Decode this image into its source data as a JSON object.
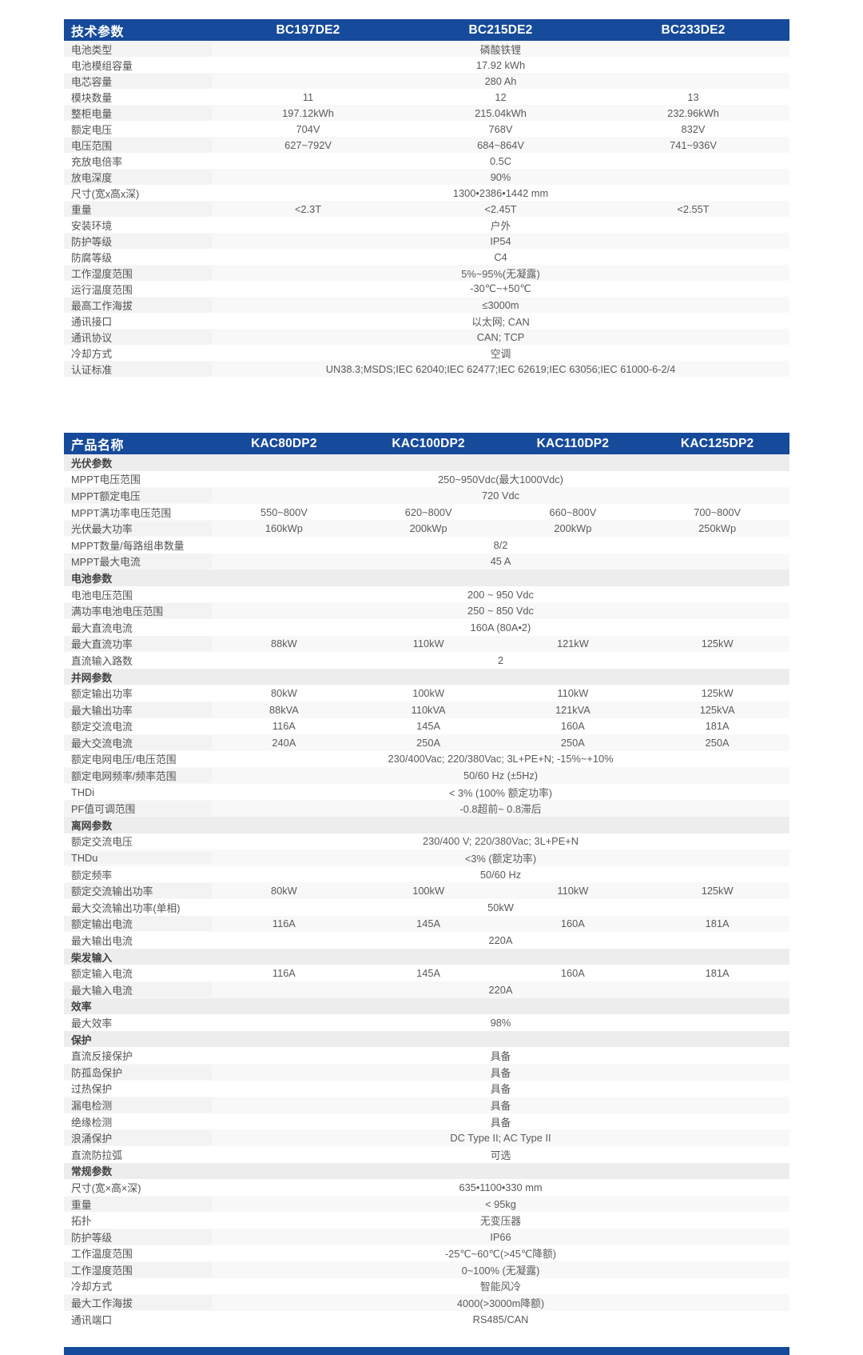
{
  "colors": {
    "header_blue": "#164a9b",
    "stripe_gray": "#f8f8f9",
    "section_gray": "#ededee",
    "body_text": "#5a5a5c"
  },
  "tables": [
    {
      "title": "技术参数",
      "columns": [
        "BC197DE2",
        "BC215DE2",
        "BC233DE2"
      ],
      "first_row_shaded": true,
      "rows": [
        {
          "label": "电池类型",
          "span": "磷酸铁锂"
        },
        {
          "label": "电池模组容量",
          "span": "17.92 kWh"
        },
        {
          "label": "电芯容量",
          "span": "280 Ah"
        },
        {
          "label": "模块数量",
          "values": [
            "11",
            "12",
            "13"
          ]
        },
        {
          "label": "整柜电量",
          "values": [
            "197.12kWh",
            "215.04kWh",
            "232.96kWh"
          ]
        },
        {
          "label": "额定电压",
          "values": [
            "704V",
            "768V",
            "832V"
          ]
        },
        {
          "label": "电压范围",
          "values": [
            "627~792V",
            "684~864V",
            "741~936V"
          ]
        },
        {
          "label": "充放电倍率",
          "span": "0.5C"
        },
        {
          "label": "放电深度",
          "span": "90%"
        },
        {
          "label": "尺寸(宽x高x深)",
          "span": "1300•2386•1442 mm"
        },
        {
          "label": "重量",
          "values": [
            "<2.3T",
            "<2.45T",
            "<2.55T"
          ]
        },
        {
          "label": "安装环境",
          "span": "户外"
        },
        {
          "label": "防护等级",
          "span": "IP54"
        },
        {
          "label": "防腐等级",
          "span": "C4"
        },
        {
          "label": "工作湿度范围",
          "span": "5%~95%(无凝露)"
        },
        {
          "label": "运行温度范围",
          "span": "-30℃~+50℃"
        },
        {
          "label": "最高工作海拔",
          "span": "≤3000m"
        },
        {
          "label": "通讯接口",
          "span": "以太网; CAN"
        },
        {
          "label": "通讯协议",
          "span": "CAN; TCP"
        },
        {
          "label": "冷却方式",
          "span": "空调"
        },
        {
          "label": "认证标准",
          "span": "UN38.3;MSDS;IEC 62040;IEC 62477;IEC 62619;IEC 63056;IEC 61000-6-2/4"
        }
      ]
    },
    {
      "title": "产品名称",
      "columns": [
        "KAC80DP2",
        "KAC100DP2",
        "KAC110DP2",
        "KAC125DP2"
      ],
      "first_row_shaded": false,
      "rows": [
        {
          "section": "光伏参数"
        },
        {
          "label": "MPPT电压范围",
          "span": "250~950Vdc(最大1000Vdc)"
        },
        {
          "label": "MPPT额定电压",
          "span": "720 Vdc"
        },
        {
          "label": "MPPT满功率电压范围",
          "values": [
            "550~800V",
            "620~800V",
            "660~800V",
            "700~800V"
          ]
        },
        {
          "label": "光伏最大功率",
          "values": [
            "160kWp",
            "200kWp",
            "200kWp",
            "250kWp"
          ]
        },
        {
          "label": "MPPT数量/每路组串数量",
          "span": "8/2"
        },
        {
          "label": "MPPT最大电流",
          "span": "45 A"
        },
        {
          "section": "电池参数"
        },
        {
          "label": "电池电压范围",
          "span": "200 ~ 950 Vdc"
        },
        {
          "label": "满功率电池电压范围",
          "span": "250 ~ 850 Vdc"
        },
        {
          "label": "最大直流电流",
          "span": "160A (80A•2)"
        },
        {
          "label": "最大直流功率",
          "values": [
            "88kW",
            "110kW",
            "121kW",
            "125kW"
          ]
        },
        {
          "label": "直流输入路数",
          "span": "2"
        },
        {
          "section": "并网参数"
        },
        {
          "label": "额定输出功率",
          "values": [
            "80kW",
            "100kW",
            "110kW",
            "125kW"
          ]
        },
        {
          "label": "最大输出功率",
          "values": [
            "88kVA",
            "110kVA",
            "121kVA",
            "125kVA"
          ]
        },
        {
          "label": "额定交流电流",
          "values": [
            "116A",
            "145A",
            "160A",
            "181A"
          ]
        },
        {
          "label": "最大交流电流",
          "values": [
            "240A",
            "250A",
            "250A",
            "250A"
          ]
        },
        {
          "label": "额定电网电压/电压范围",
          "span": "230/400Vac; 220/380Vac; 3L+PE+N; -15%~+10%"
        },
        {
          "label": "额定电网频率/频率范围",
          "span": "50/60 Hz (±5Hz)"
        },
        {
          "label": "THDi",
          "span": "< 3% (100% 额定功率)"
        },
        {
          "label": "PF值可调范围",
          "span": "-0.8超前~ 0.8滞后"
        },
        {
          "section": "离网参数"
        },
        {
          "label": "额定交流电压",
          "span": "230/400 V; 220/380Vac; 3L+PE+N"
        },
        {
          "label": "THDu",
          "span": "<3% (额定功率)"
        },
        {
          "label": "额定频率",
          "span": "50/60 Hz"
        },
        {
          "label": "额定交流输出功率",
          "values": [
            "80kW",
            "100kW",
            "110kW",
            "125kW"
          ]
        },
        {
          "label": "最大交流输出功率(单相)",
          "span": "50kW"
        },
        {
          "label": "额定输出电流",
          "values": [
            "116A",
            "145A",
            "160A",
            "181A"
          ]
        },
        {
          "label": "最大输出电流",
          "span": "220A"
        },
        {
          "section": "柴发输入"
        },
        {
          "label": "额定输入电流",
          "values": [
            "116A",
            "145A",
            "160A",
            "181A"
          ]
        },
        {
          "label": "最大输入电流",
          "span": "220A"
        },
        {
          "section": "效率"
        },
        {
          "label": "最大效率",
          "span": "98%"
        },
        {
          "section": "保护"
        },
        {
          "label": "直流反接保护",
          "span": "具备"
        },
        {
          "label": "防孤岛保护",
          "span": "具备"
        },
        {
          "label": "过热保护",
          "span": "具备"
        },
        {
          "label": "漏电检测",
          "span": "具备"
        },
        {
          "label": "绝缘检测",
          "span": "具备"
        },
        {
          "label": "浪涌保护",
          "span": "DC Type II; AC Type II"
        },
        {
          "label": "直流防拉弧",
          "span": "可选"
        },
        {
          "section": "常规参数"
        },
        {
          "label": "尺寸(宽×高×深)",
          "span": "635•1100•330 mm"
        },
        {
          "label": "重量",
          "span": "< 95kg"
        },
        {
          "label": "拓扑",
          "span": "无变压器"
        },
        {
          "label": "防护等级",
          "span": "IP66"
        },
        {
          "label": "工作温度范围",
          "span": "-25℃~60℃(>45℃降额)"
        },
        {
          "label": "工作湿度范围",
          "span": "0~100% (无凝露)"
        },
        {
          "label": "冷却方式",
          "span": "智能风冷"
        },
        {
          "label": "最大工作海拔",
          "span": "4000(>3000m降额)"
        },
        {
          "label": "通讯端口",
          "span": "RS485/CAN"
        }
      ]
    }
  ]
}
